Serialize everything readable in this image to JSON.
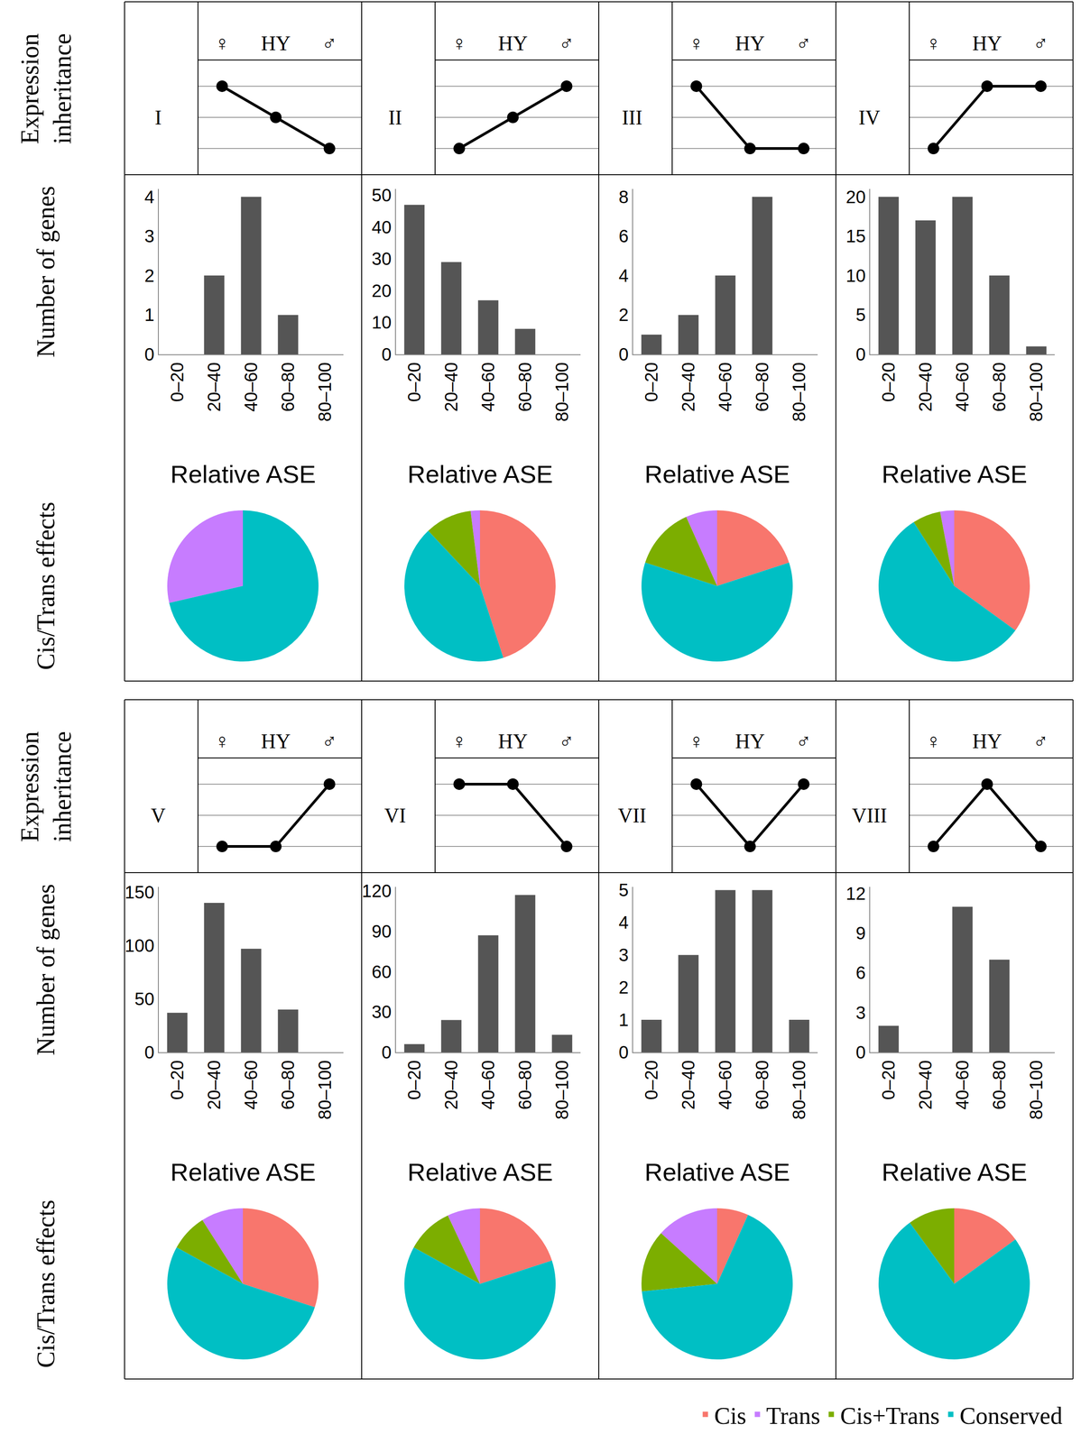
{
  "chart_data": [
    {
      "type": "line",
      "title": "I",
      "y_label": "Expression inheritance",
      "categories": [
        "♀",
        "HY",
        "♂"
      ],
      "values": [
        3,
        2,
        1
      ],
      "ylim": [
        0.16,
        3.84
      ],
      "yticks": [
        1,
        2,
        3
      ],
      "grid": true,
      "tick_labels": "x",
      "color": "#000000",
      "marker": "circle"
    },
    {
      "type": "bar",
      "y_label": "Number of genes",
      "x_label": "Relative ASE",
      "categories": [
        "0–20",
        "20–40",
        "40–60",
        "60–80",
        "80–100"
      ],
      "values": [
        0,
        2,
        4,
        1,
        0
      ],
      "ylim": [
        0,
        4.2
      ],
      "yticks": [
        0,
        1,
        2,
        3,
        4
      ],
      "grid": false,
      "color": "#555555"
    },
    {
      "type": "pie",
      "y_label": "Cis/Trans effects",
      "categories": [
        "Cis",
        "Trans",
        "Cis+Trans",
        "Conserved"
      ],
      "values": [
        0,
        28.6,
        0,
        71.4
      ],
      "colors": [
        "#F8766D",
        "#C77CFF",
        "#7CAE00",
        "#00BFC4"
      ],
      "data_labels": false
    },
    {
      "type": "line",
      "title": "II",
      "categories": [
        "♀",
        "HY",
        "♂"
      ],
      "values": [
        1,
        2,
        3
      ],
      "ylim": [
        0.16,
        3.84
      ],
      "yticks": [
        1,
        2,
        3
      ],
      "grid": true,
      "tick_labels": "x",
      "color": "#000000",
      "marker": "circle"
    },
    {
      "type": "bar",
      "x_label": "Relative ASE",
      "categories": [
        "0–20",
        "20–40",
        "40–60",
        "60–80",
        "80–100"
      ],
      "values": [
        47,
        29,
        17,
        8,
        0
      ],
      "ylim": [
        0,
        52
      ],
      "yticks": [
        0,
        10,
        20,
        30,
        40,
        50
      ],
      "grid": false,
      "color": "#555555"
    },
    {
      "type": "pie",
      "categories": [
        "Cis",
        "Trans",
        "Cis+Trans",
        "Conserved"
      ],
      "values": [
        45,
        2,
        10,
        43
      ],
      "colors": [
        "#F8766D",
        "#C77CFF",
        "#7CAE00",
        "#00BFC4"
      ],
      "data_labels": false
    },
    {
      "type": "line",
      "title": "III",
      "categories": [
        "♀",
        "HY",
        "♂"
      ],
      "values": [
        3,
        1,
        1
      ],
      "ylim": [
        0.16,
        3.84
      ],
      "yticks": [
        1,
        2,
        3
      ],
      "grid": true,
      "tick_labels": "x",
      "color": "#000000",
      "marker": "circle"
    },
    {
      "type": "bar",
      "x_label": "Relative ASE",
      "categories": [
        "0–20",
        "20–40",
        "40–60",
        "60–80",
        "80–100"
      ],
      "values": [
        1,
        2,
        4,
        8,
        0
      ],
      "ylim": [
        0,
        8.4
      ],
      "yticks": [
        0,
        2,
        4,
        6,
        8
      ],
      "grid": false,
      "color": "#555555"
    },
    {
      "type": "pie",
      "categories": [
        "Cis",
        "Trans",
        "Cis+Trans",
        "Conserved"
      ],
      "values": [
        20,
        6.7,
        13.3,
        60
      ],
      "colors": [
        "#F8766D",
        "#C77CFF",
        "#7CAE00",
        "#00BFC4"
      ],
      "data_labels": false
    },
    {
      "type": "line",
      "title": "IV",
      "categories": [
        "♀",
        "HY",
        "♂"
      ],
      "values": [
        1,
        3,
        3
      ],
      "ylim": [
        0.16,
        3.84
      ],
      "yticks": [
        1,
        2,
        3
      ],
      "grid": true,
      "tick_labels": "x",
      "color": "#000000",
      "marker": "circle"
    },
    {
      "type": "bar",
      "x_label": "Relative ASE",
      "categories": [
        "0–20",
        "20–40",
        "40–60",
        "60–80",
        "80–100"
      ],
      "values": [
        20,
        17,
        20,
        10,
        1
      ],
      "ylim": [
        0,
        21
      ],
      "yticks": [
        0,
        5,
        10,
        15,
        20
      ],
      "grid": false,
      "color": "#555555"
    },
    {
      "type": "pie",
      "categories": [
        "Cis",
        "Trans",
        "Cis+Trans",
        "Conserved"
      ],
      "values": [
        35,
        3,
        6,
        56
      ],
      "colors": [
        "#F8766D",
        "#C77CFF",
        "#7CAE00",
        "#00BFC4"
      ],
      "data_labels": false
    },
    {
      "type": "line",
      "title": "V",
      "y_label": "Expression inheritance",
      "categories": [
        "♀",
        "HY",
        "♂"
      ],
      "values": [
        1,
        1,
        3
      ],
      "ylim": [
        0.16,
        3.84
      ],
      "yticks": [
        1,
        2,
        3
      ],
      "grid": true,
      "tick_labels": "x",
      "color": "#000000",
      "marker": "circle"
    },
    {
      "type": "bar",
      "y_label": "Number of genes",
      "x_label": "Relative ASE",
      "categories": [
        "0–20",
        "20–40",
        "40–60",
        "60–80",
        "80–100"
      ],
      "values": [
        37,
        140,
        97,
        40,
        0
      ],
      "ylim": [
        0,
        155
      ],
      "yticks": [
        0,
        50,
        100,
        150
      ],
      "grid": false,
      "color": "#555555"
    },
    {
      "type": "pie",
      "y_label": "Cis/Trans effects",
      "categories": [
        "Cis",
        "Trans",
        "Cis+Trans",
        "Conserved"
      ],
      "values": [
        30,
        9,
        8,
        53
      ],
      "colors": [
        "#F8766D",
        "#C77CFF",
        "#7CAE00",
        "#00BFC4"
      ],
      "data_labels": false
    },
    {
      "type": "line",
      "title": "VI",
      "categories": [
        "♀",
        "HY",
        "♂"
      ],
      "values": [
        3,
        3,
        1
      ],
      "ylim": [
        0.16,
        3.84
      ],
      "yticks": [
        1,
        2,
        3
      ],
      "grid": true,
      "tick_labels": "x",
      "color": "#000000",
      "marker": "circle"
    },
    {
      "type": "bar",
      "x_label": "Relative ASE",
      "categories": [
        "0–20",
        "20–40",
        "40–60",
        "60–80",
        "80–100"
      ],
      "values": [
        6,
        24,
        87,
        117,
        13
      ],
      "ylim": [
        0,
        123
      ],
      "yticks": [
        0,
        30,
        60,
        90,
        120
      ],
      "grid": false,
      "color": "#555555"
    },
    {
      "type": "pie",
      "categories": [
        "Cis",
        "Trans",
        "Cis+Trans",
        "Conserved"
      ],
      "values": [
        20,
        7,
        10,
        63
      ],
      "colors": [
        "#F8766D",
        "#C77CFF",
        "#7CAE00",
        "#00BFC4"
      ],
      "data_labels": false
    },
    {
      "type": "line",
      "title": "VII",
      "categories": [
        "♀",
        "HY",
        "♂"
      ],
      "values": [
        3,
        1,
        3
      ],
      "ylim": [
        0.16,
        3.84
      ],
      "yticks": [
        1,
        2,
        3
      ],
      "grid": true,
      "tick_labels": "x",
      "color": "#000000",
      "marker": "circle"
    },
    {
      "type": "bar",
      "x_label": "Relative ASE",
      "categories": [
        "0–20",
        "20–40",
        "40–60",
        "60–80",
        "80–100"
      ],
      "values": [
        1,
        3,
        5,
        5,
        1
      ],
      "ylim": [
        0,
        5.1
      ],
      "yticks": [
        0,
        1,
        2,
        3,
        4,
        5
      ],
      "grid": false,
      "color": "#555555"
    },
    {
      "type": "pie",
      "categories": [
        "Cis",
        "Trans",
        "Cis+Trans",
        "Conserved"
      ],
      "values": [
        6.7,
        13.3,
        13.3,
        66.7
      ],
      "colors": [
        "#F8766D",
        "#C77CFF",
        "#7CAE00",
        "#00BFC4"
      ],
      "data_labels": false,
      "legend": "bottom right"
    },
    {
      "type": "line",
      "title": "VIII",
      "categories": [
        "♀",
        "HY",
        "♂"
      ],
      "values": [
        1,
        3,
        1
      ],
      "ylim": [
        0.16,
        3.84
      ],
      "yticks": [
        1,
        2,
        3
      ],
      "grid": true,
      "tick_labels": "x",
      "color": "#000000",
      "marker": "circle"
    },
    {
      "type": "bar",
      "x_label": "Relative ASE",
      "categories": [
        "0–20",
        "20–40",
        "40–60",
        "60–80",
        "80–100"
      ],
      "values": [
        2,
        0,
        11,
        7,
        0
      ],
      "ylim": [
        0,
        12.5
      ],
      "yticks": [
        0,
        3,
        6,
        9,
        12
      ],
      "grid": false,
      "color": "#555555"
    },
    {
      "type": "pie",
      "categories": [
        "Cis",
        "Trans",
        "Cis+Trans",
        "Conserved"
      ],
      "values": [
        15,
        0,
        10,
        75
      ],
      "colors": [
        "#F8766D",
        "#C77CFF",
        "#7CAE00",
        "#00BFC4"
      ],
      "data_labels": false
    }
  ]
}
